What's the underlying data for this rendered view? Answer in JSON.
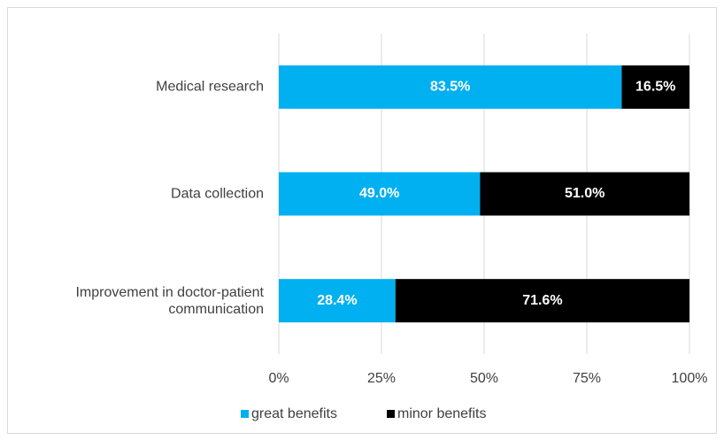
{
  "chart_data": {
    "type": "stacked_barh",
    "categories": [
      "Medical research",
      "Data collection",
      "Improvement in doctor-patient communication"
    ],
    "series": [
      {
        "name": "great benefits",
        "color": "#00b0f0",
        "values": [
          83.5,
          49.0,
          28.4
        ],
        "value_labels": [
          "83.5%",
          "49.0%",
          "28.4%"
        ]
      },
      {
        "name": "minor benefits",
        "color": "#000000",
        "values": [
          16.5,
          51.0,
          71.6
        ],
        "value_labels": [
          "16.5%",
          "51.0%",
          "71.6%"
        ]
      }
    ],
    "xlim": [
      0,
      100
    ],
    "xticks": [
      {
        "value": 0,
        "label": "0%"
      },
      {
        "value": 25,
        "label": "25%"
      },
      {
        "value": 50,
        "label": "50%"
      },
      {
        "value": 75,
        "label": "75%"
      },
      {
        "value": 100,
        "label": "100%"
      }
    ],
    "grid": true,
    "legend": "bottom"
  }
}
